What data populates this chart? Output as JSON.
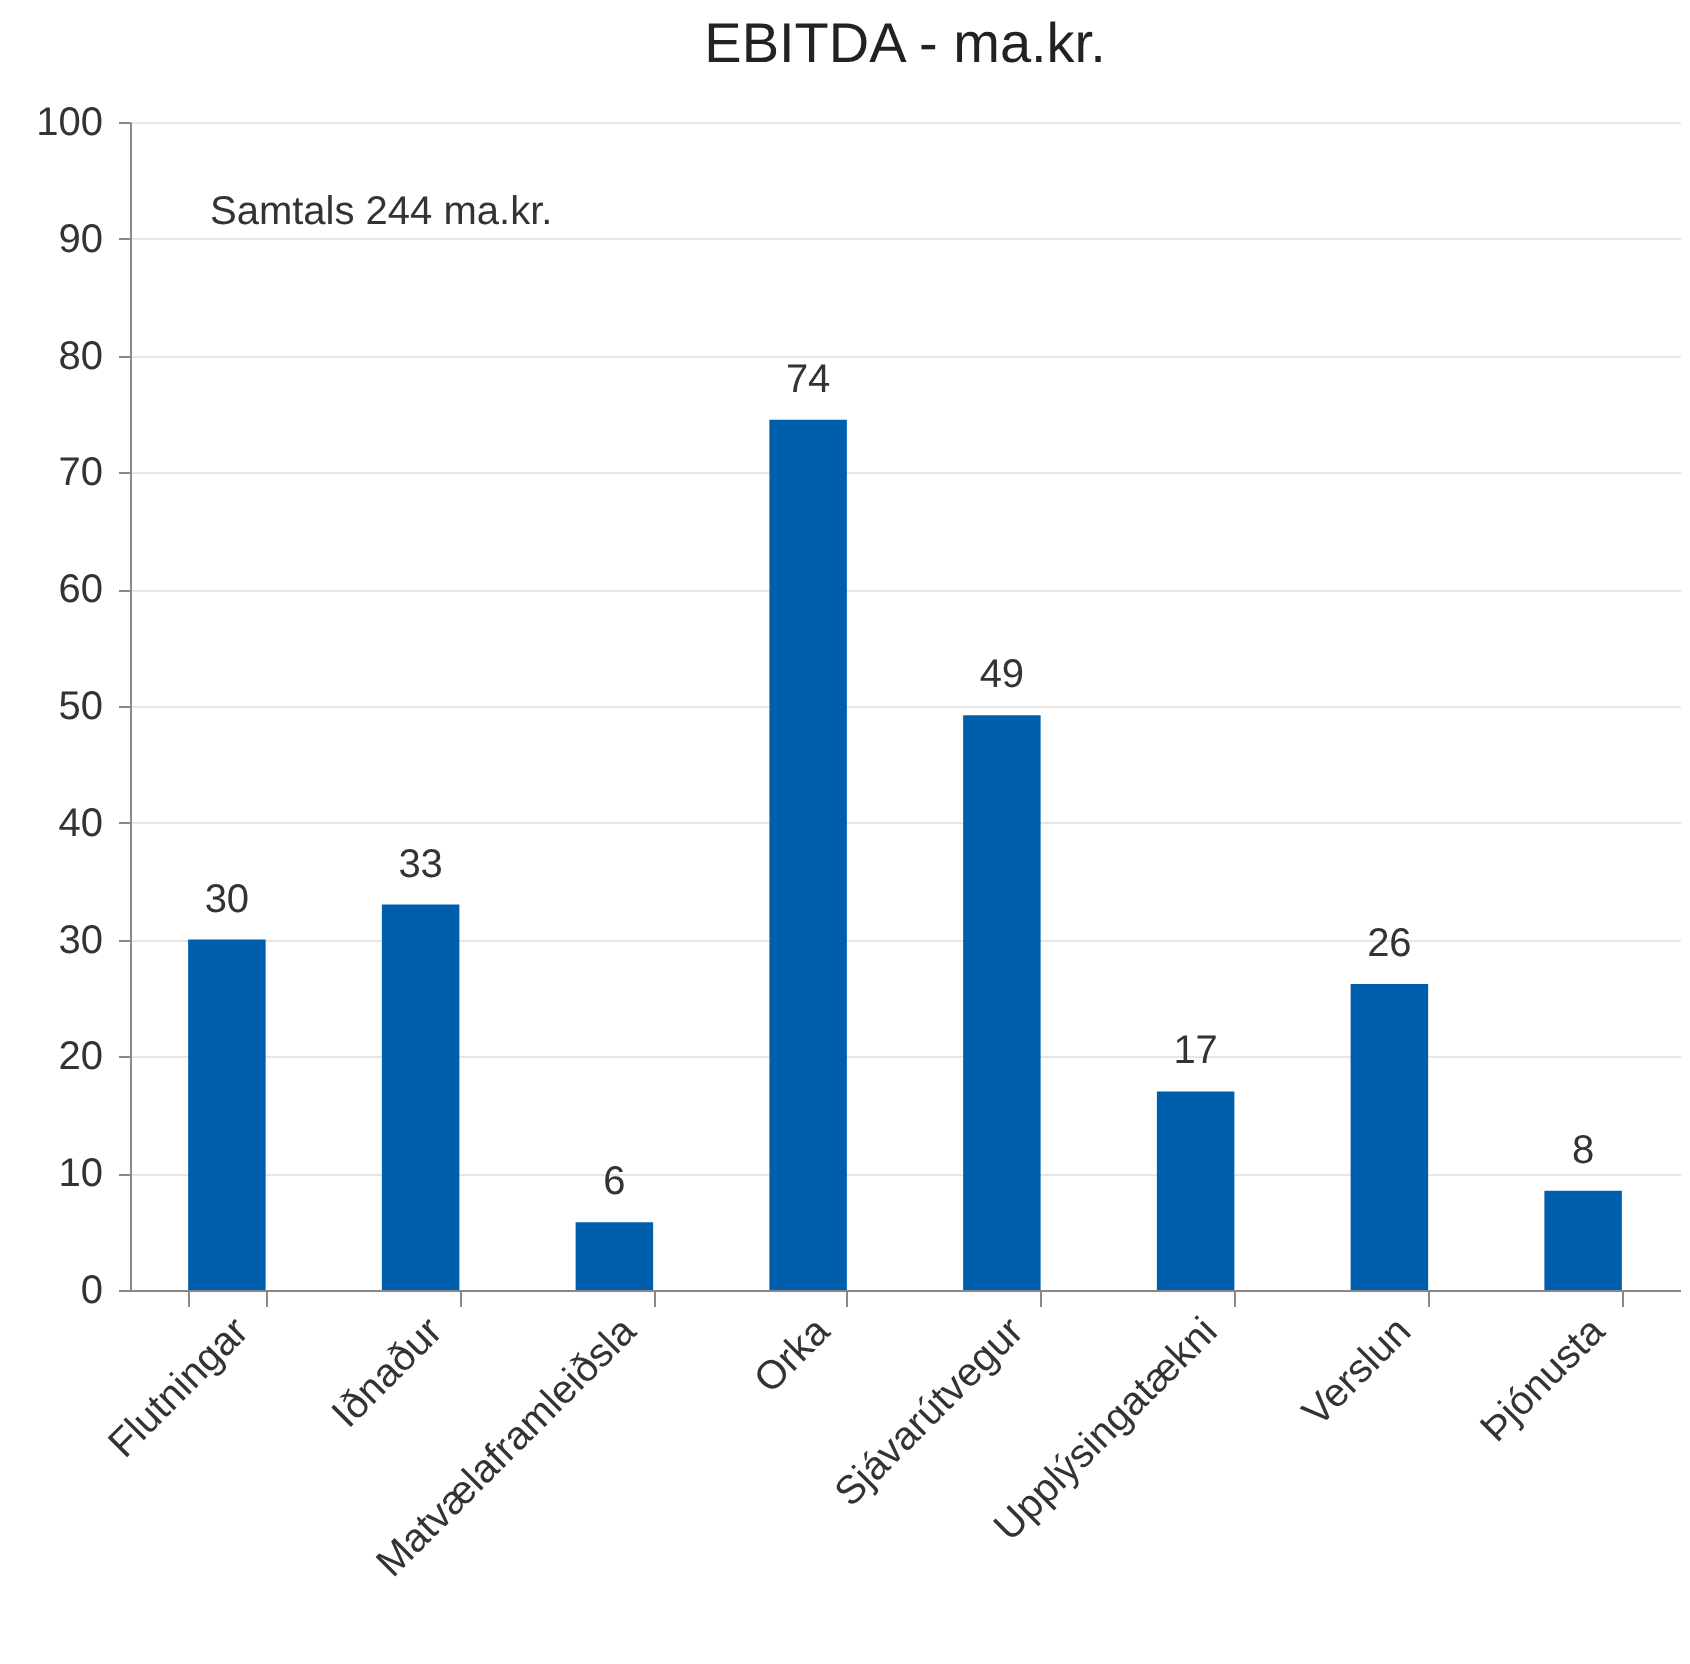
{
  "chart_data": {
    "type": "bar",
    "title": "EBITDA - ma.kr.",
    "categories": [
      "Flutningar",
      "Iðnaður",
      "Matvælaframleiðsla",
      "Orka",
      "Sjávarútvegur",
      "Upplýsingatækni",
      "Verslun",
      "Þjónusta"
    ],
    "values": [
      30,
      33,
      5.8,
      74.5,
      49.2,
      17,
      26.2,
      8.5
    ],
    "value_labels": [
      "30",
      "33",
      "6",
      "74",
      "49",
      "17",
      "26",
      "8"
    ],
    "color": "#005fad",
    "ylim": [
      0,
      100
    ],
    "yticks": [
      0,
      10,
      20,
      30,
      40,
      50,
      60,
      70,
      80,
      90,
      100
    ],
    "grid": "y",
    "annotations": [
      "Samtals 244 ma.kr."
    ]
  }
}
